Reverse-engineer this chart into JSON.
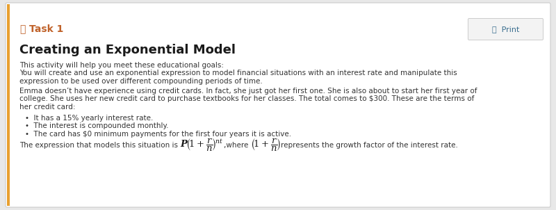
{
  "bg_color": "#e8e8e8",
  "card_color": "#ffffff",
  "task_color": "#c0622a",
  "task_label": "Task 1",
  "print_label": "  Print",
  "print_icon_color": "#3a6e8f",
  "title": "Creating an Exponential Model",
  "subtitle": "This activity will help you meet these educational goals:",
  "goal_line1": "You will create and use an exponential expression to model financial situations with an interest rate and manipulate this",
  "goal_line2": "expression to be used over different compounding periods of time.",
  "para1_line1": "Emma doesn’t have experience using credit cards. In fact, she just got her first one. She is also about to start her first year of",
  "para1_line2": "college. She uses her new credit card to purchase textbooks for her classes. The total comes to $300. These are the terms of",
  "para1_line3": "her credit card:",
  "bullet1": "It has a 15% yearly interest rate.",
  "bullet2": "The interest is compounded monthly.",
  "bullet3": "The card has $0 minimum payments for the first four years it is active.",
  "last_line_pre": "The expression that models this situation is ",
  "last_line_post": ",where ",
  "last_line_end": "represents the growth factor of the interest rate.",
  "left_bar_color": "#e8a030",
  "text_color": "#1a1a1a",
  "small_text_color": "#333333",
  "figw": 8.0,
  "figh": 3.02,
  "dpi": 100
}
